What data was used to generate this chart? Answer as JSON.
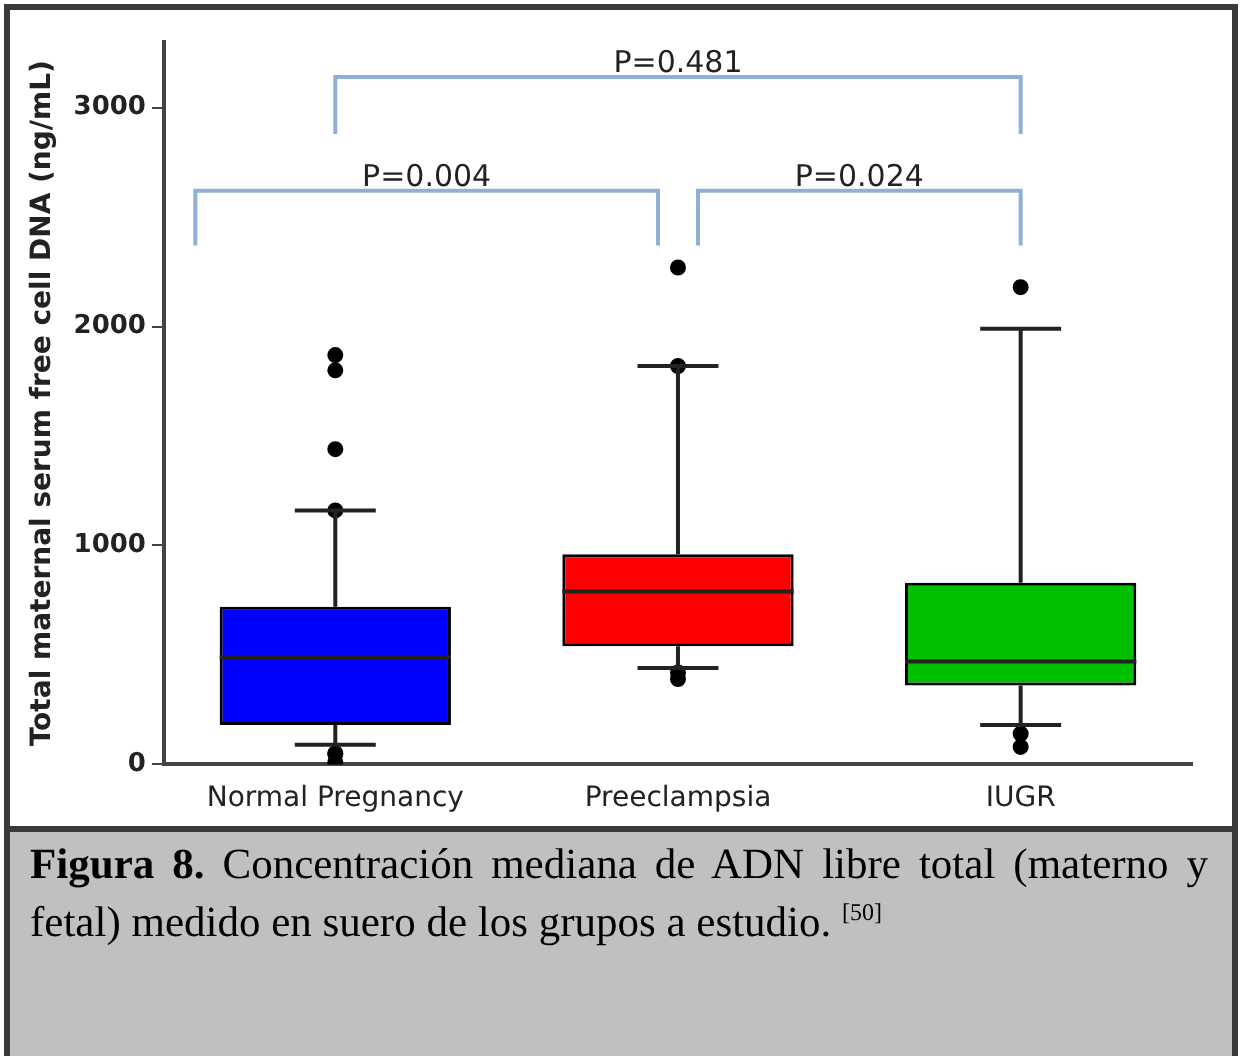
{
  "chart_data": {
    "type": "box",
    "ylabel": "Total maternal serum free cell DNA (ng/mL)",
    "categories": [
      "Normal Pregnancy",
      "Preeclampsia",
      "IUGR"
    ],
    "colors": [
      "#0000ff",
      "#ff0000",
      "#00c000"
    ],
    "boxes": [
      {
        "low": 90,
        "q1": 180,
        "median": 490,
        "q3": 720,
        "high": 1160,
        "outliers": [
          1870,
          1800,
          1440,
          1160,
          50,
          50,
          10
        ]
      },
      {
        "low": 440,
        "q1": 540,
        "median": 790,
        "q3": 960,
        "high": 1820,
        "outliers": [
          2270,
          1820,
          420,
          390
        ]
      },
      {
        "low": 180,
        "q1": 360,
        "median": 470,
        "q3": 830,
        "high": 1990,
        "outliers": [
          2180,
          140,
          80
        ]
      }
    ],
    "ylim": [
      0,
      3300
    ],
    "yticks": [
      0,
      1000,
      2000,
      3000
    ],
    "grid": false,
    "legend": false,
    "annotations": [
      "P=0.481",
      "P=0.004",
      "P=0.024",
      "Figura 8. Concentración mediana de ADN libre total (materno y fetal) medido en suero de los grupos a estudio. $^{[50]}$"
    ]
  }
}
